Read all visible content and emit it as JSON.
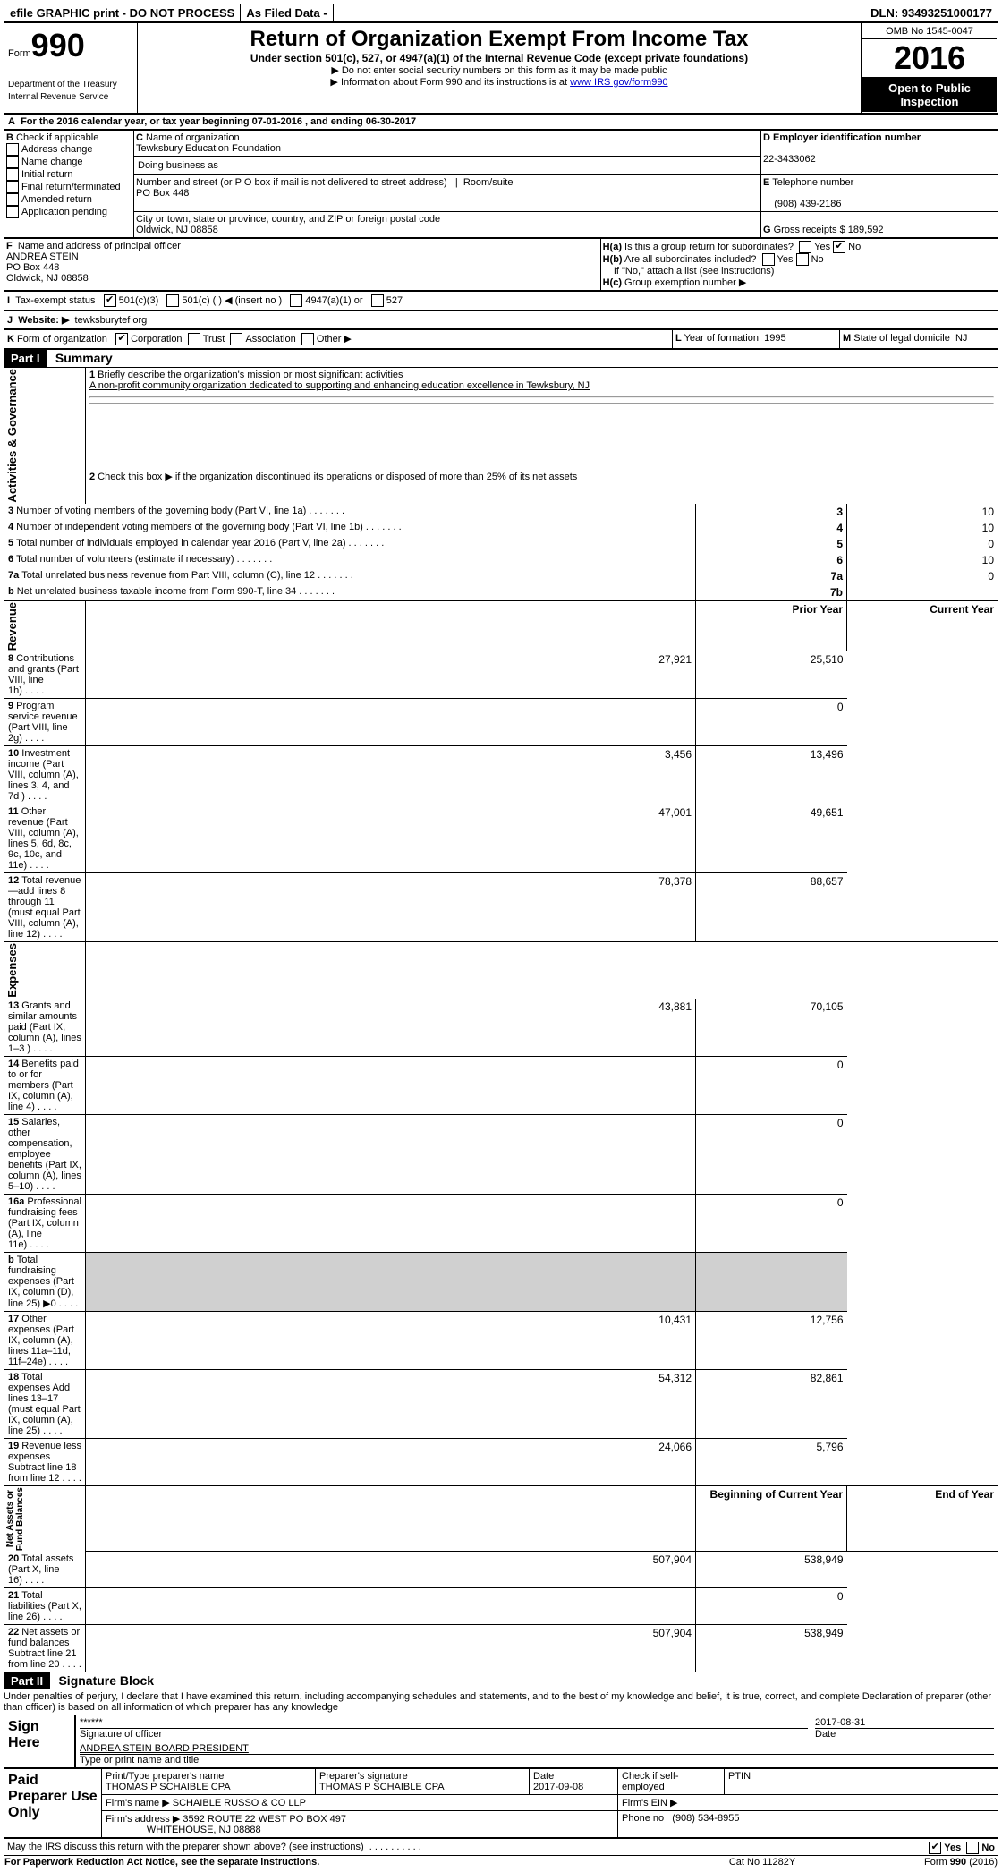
{
  "topbar": {
    "efile": "efile GRAPHIC print - DO NOT PROCESS",
    "asfiled": "As Filed Data -",
    "dln": "DLN: 93493251000177"
  },
  "header": {
    "form_prefix": "Form",
    "form_no": "990",
    "dept": "Department of the Treasury",
    "irs": "Internal Revenue Service",
    "title": "Return of Organization Exempt From Income Tax",
    "subtitle": "Under section 501(c), 527, or 4947(a)(1) of the Internal Revenue Code (except private foundations)",
    "bullet1": "Do not enter social security numbers on this form as it may be made public",
    "bullet2_pre": "Information about Form 990 and its instructions is at ",
    "bullet2_link": "www IRS gov/form990",
    "omb": "OMB No 1545-0047",
    "year": "2016",
    "open": "Open to Public Inspection"
  },
  "A": {
    "text": "For the 2016 calendar year, or tax year beginning 07-01-2016   , and ending 06-30-2017"
  },
  "B": {
    "label": "Check if applicable",
    "opts": [
      "Address change",
      "Name change",
      "Initial return",
      "Final return/terminated",
      "Amended return",
      "Application pending"
    ]
  },
  "C": {
    "label": "Name of organization",
    "name": "Tewksbury Education Foundation",
    "dba_label": "Doing business as",
    "addr_label": "Number and street (or P O  box if mail is not delivered to street address)",
    "room_label": "Room/suite",
    "addr": "PO Box 448",
    "city_label": "City or town, state or province, country, and ZIP or foreign postal code",
    "city": "Oldwick, NJ  08858"
  },
  "D": {
    "label": "Employer identification number",
    "val": "22-3433062"
  },
  "E": {
    "label": "Telephone number",
    "val": "(908) 439-2186"
  },
  "G": {
    "label": "Gross receipts $",
    "val": "189,592"
  },
  "F": {
    "label": "Name and address of principal officer",
    "name": "ANDREA STEIN",
    "addr1": "PO Box 448",
    "addr2": "Oldwick, NJ  08858"
  },
  "H": {
    "a": "Is this a group return for subordinates?",
    "b": "Are all subordinates included?",
    "note": "If \"No,\" attach a list  (see instructions)",
    "c": "Group exemption number ▶"
  },
  "I": {
    "label": "Tax-exempt status",
    "o1": "501(c)(3)",
    "o2": "501(c) (   ) ◀ (insert no )",
    "o3": "4947(a)(1) or",
    "o4": "527"
  },
  "J": {
    "label": "Website: ▶",
    "val": "tewksburytef org"
  },
  "K": {
    "label": "Form of organization",
    "opts": [
      "Corporation",
      "Trust",
      "Association",
      "Other ▶"
    ]
  },
  "L": {
    "label": "Year of formation",
    "val": "1995"
  },
  "M": {
    "label": "State of legal domicile",
    "val": "NJ"
  },
  "partI": {
    "hdr": "Part I",
    "title": "Summary",
    "l1_label": "Briefly describe the organization's mission or most significant activities",
    "l1_val": "A non-profit community organization dedicated to supporting and enhancing education excellence in Tewksbury, NJ",
    "l2": "Check this box ▶    if the organization discontinued its operations or disposed of more than 25% of its net assets",
    "rows_ag": [
      {
        "n": "3",
        "t": "Number of voting members of the governing body (Part VI, line 1a)",
        "box": "3",
        "v": "10"
      },
      {
        "n": "4",
        "t": "Number of independent voting members of the governing body (Part VI, line 1b)",
        "box": "4",
        "v": "10"
      },
      {
        "n": "5",
        "t": "Total number of individuals employed in calendar year 2016 (Part V, line 2a)",
        "box": "5",
        "v": "0"
      },
      {
        "n": "6",
        "t": "Total number of volunteers (estimate if necessary)",
        "box": "6",
        "v": "10"
      },
      {
        "n": "7a",
        "t": "Total unrelated business revenue from Part VIII, column (C), line 12",
        "box": "7a",
        "v": "0"
      },
      {
        "n": "b",
        "t": "Net unrelated business taxable income from Form 990-T, line 34",
        "box": "7b",
        "v": ""
      }
    ],
    "col_py": "Prior Year",
    "col_cy": "Current Year",
    "rows_rev": [
      {
        "n": "8",
        "t": "Contributions and grants (Part VIII, line 1h)",
        "py": "27,921",
        "cy": "25,510"
      },
      {
        "n": "9",
        "t": "Program service revenue (Part VIII, line 2g)",
        "py": "",
        "cy": "0"
      },
      {
        "n": "10",
        "t": "Investment income (Part VIII, column (A), lines 3, 4, and 7d )",
        "py": "3,456",
        "cy": "13,496"
      },
      {
        "n": "11",
        "t": "Other revenue (Part VIII, column (A), lines 5, 6d, 8c, 9c, 10c, and 11e)",
        "py": "47,001",
        "cy": "49,651"
      },
      {
        "n": "12",
        "t": "Total revenue—add lines 8 through 11 (must equal Part VIII, column (A), line 12)",
        "py": "78,378",
        "cy": "88,657"
      }
    ],
    "rows_exp": [
      {
        "n": "13",
        "t": "Grants and similar amounts paid (Part IX, column (A), lines 1–3 )",
        "py": "43,881",
        "cy": "70,105"
      },
      {
        "n": "14",
        "t": "Benefits paid to or for members (Part IX, column (A), line 4)",
        "py": "",
        "cy": "0"
      },
      {
        "n": "15",
        "t": "Salaries, other compensation, employee benefits (Part IX, column (A), lines 5–10)",
        "py": "",
        "cy": "0"
      },
      {
        "n": "16a",
        "t": "Professional fundraising fees (Part IX, column (A), line 11e)",
        "py": "",
        "cy": "0"
      },
      {
        "n": "b",
        "t": "Total fundraising expenses (Part IX, column (D), line 25) ▶0",
        "py": "GREY",
        "cy": "GREY"
      },
      {
        "n": "17",
        "t": "Other expenses (Part IX, column (A), lines 11a–11d, 11f–24e)",
        "py": "10,431",
        "cy": "12,756"
      },
      {
        "n": "18",
        "t": "Total expenses  Add lines 13–17 (must equal Part IX, column (A), line 25)",
        "py": "54,312",
        "cy": "82,861"
      },
      {
        "n": "19",
        "t": "Revenue less expenses  Subtract line 18 from line 12",
        "py": "24,066",
        "cy": "5,796"
      }
    ],
    "col_boy": "Beginning of Current Year",
    "col_eoy": "End of Year",
    "rows_na": [
      {
        "n": "20",
        "t": "Total assets (Part X, line 16)",
        "py": "507,904",
        "cy": "538,949"
      },
      {
        "n": "21",
        "t": "Total liabilities (Part X, line 26)",
        "py": "",
        "cy": "0"
      },
      {
        "n": "22",
        "t": "Net assets or fund balances  Subtract line 21 from line 20",
        "py": "507,904",
        "cy": "538,949"
      }
    ]
  },
  "partII": {
    "hdr": "Part II",
    "title": "Signature Block",
    "perjury": "Under penalties of perjury, I declare that I have examined this return, including accompanying schedules and statements, and to the best of my knowledge and belief, it is true, correct, and complete  Declaration of preparer (other than officer) is based on all information of which preparer has any knowledge",
    "sign_here": "Sign Here",
    "stars": "******",
    "sig_label": "Signature of officer",
    "date": "2017-08-31",
    "date_label": "Date",
    "name": "ANDREA STEIN  BOARD PRESIDENT",
    "name_label": "Type or print name and title",
    "paid": "Paid Preparer Use Only",
    "prep_name_label": "Print/Type preparer's name",
    "prep_name": "THOMAS P SCHAIBLE CPA",
    "prep_sig_label": "Preparer's signature",
    "prep_sig": "THOMAS P SCHAIBLE CPA",
    "prep_date_label": "Date",
    "prep_date": "2017-09-08",
    "self_emp": "Check       if self-employed",
    "ptin": "PTIN",
    "firm_name_label": "Firm's name    ▶",
    "firm_name": "SCHAIBLE RUSSO & CO LLP",
    "firm_ein": "Firm's EIN ▶",
    "firm_addr_label": "Firm's address ▶",
    "firm_addr": "3592 ROUTE 22 WEST PO BOX 497",
    "firm_city": "WHITEHOUSE, NJ  08888",
    "phone_label": "Phone no",
    "phone": "(908) 534-8955",
    "discuss": "May the IRS discuss this return with the preparer shown above? (see instructions)",
    "footer_l": "For Paperwork Reduction Act Notice, see the separate instructions.",
    "footer_m": "Cat  No  11282Y",
    "footer_r": "Form 990 (2016)"
  }
}
